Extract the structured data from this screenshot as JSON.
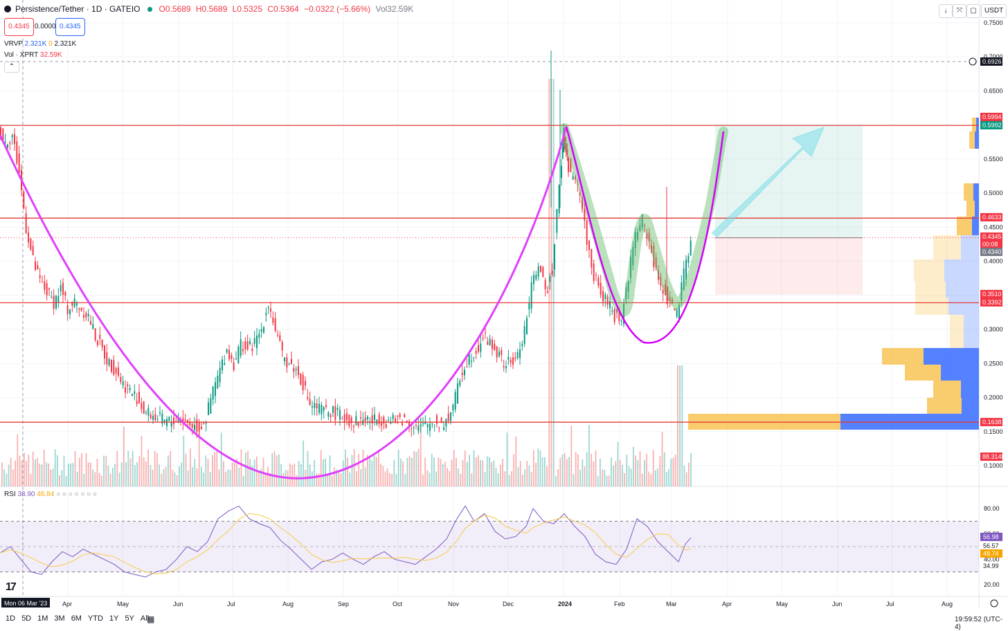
{
  "header": {
    "symbol": "Persistence/Tether · 1D · GATEIO",
    "o": "O0.5689",
    "h": "H0.5689",
    "l": "L0.5325",
    "c": "C0.5364",
    "change": "−0.0322 (−5.66%)",
    "vol": "Vol32.59K",
    "bid": "0.4345",
    "spread": "0.0000",
    "ask": "0.4345"
  },
  "indicators": {
    "vrvp_label": "VRVP",
    "vrvp_v1": "2.321K",
    "vrvp_v2": "0",
    "vrvp_v3": "2.321K",
    "vol_label": "Vol · XPRT",
    "vol_value": "32.59K",
    "rsi_label": "RSI",
    "rsi_value": "38.90",
    "rsi_ma": "46.84"
  },
  "toolbar": {
    "quote": "USDT"
  },
  "timeframes": [
    "1D",
    "5D",
    "1M",
    "3M",
    "6M",
    "YTD",
    "1Y",
    "5Y",
    "All"
  ],
  "clock": "19:59:52 (UTC-4)",
  "chart_data": {
    "type": "candlestick",
    "price_ticks": [
      "0.7500",
      "0.7000",
      "0.6500",
      "0.6000",
      "0.5500",
      "0.5000",
      "0.4500",
      "0.4000",
      "0.3500",
      "0.3000",
      "0.2500",
      "0.2000",
      "0.1500",
      "0.1000"
    ],
    "price_ylim": [
      0.075,
      0.755
    ],
    "x_labels": [
      "Mon 06 Mar '23",
      "Apr",
      "May",
      "Jun",
      "Jul",
      "Aug",
      "Sep",
      "Oct",
      "Nov",
      "Dec",
      "2024",
      "Feb",
      "Mar",
      "Apr",
      "May",
      "Jun",
      "Jul",
      "Aug"
    ],
    "price_labels": [
      {
        "text": "0.6926",
        "color": "#131722"
      },
      {
        "text": "0.5994",
        "color": "#f23645"
      },
      {
        "text": "0.5992",
        "color": "#089981"
      },
      {
        "text": "0.4633",
        "color": "#f23645"
      },
      {
        "text": "0.4345",
        "color": "#f23645"
      },
      {
        "text": "00:08",
        "color": "#f23645"
      },
      {
        "text": "0.4340",
        "color": "#787b86"
      },
      {
        "text": "0.3510",
        "color": "#f23645"
      },
      {
        "text": "0.3392",
        "color": "#f23645"
      },
      {
        "text": "0.1638",
        "color": "#f23645"
      },
      {
        "text": "88.314K",
        "color": "#f23645"
      }
    ],
    "horizontal_levels": [
      0.5994,
      0.4633,
      0.3392,
      0.1638
    ],
    "rsi": {
      "ticks": [
        "80.00",
        "60.00",
        "40.00",
        "20.00"
      ],
      "labels": [
        {
          "text": "56.98",
          "color": "#7e57c2"
        },
        {
          "text": "56.57",
          "color": "#131722"
        },
        {
          "text": "48.74",
          "color": "#f7a600"
        },
        {
          "text": "34.99",
          "color": "#131722"
        }
      ],
      "band": [
        30,
        70
      ]
    },
    "price_path": [
      [
        0,
        0.595
      ],
      [
        10,
        0.575
      ],
      [
        20,
        0.585
      ],
      [
        30,
        0.53
      ],
      [
        40,
        0.45
      ],
      [
        50,
        0.4
      ],
      [
        60,
        0.37
      ],
      [
        70,
        0.355
      ],
      [
        80,
        0.34
      ],
      [
        90,
        0.36
      ],
      [
        100,
        0.33
      ],
      [
        110,
        0.34
      ],
      [
        120,
        0.33
      ],
      [
        130,
        0.32
      ],
      [
        140,
        0.29
      ],
      [
        150,
        0.27
      ],
      [
        160,
        0.25
      ],
      [
        170,
        0.24
      ],
      [
        180,
        0.22
      ],
      [
        190,
        0.21
      ],
      [
        200,
        0.2
      ],
      [
        210,
        0.18
      ],
      [
        220,
        0.175
      ],
      [
        230,
        0.17
      ],
      [
        240,
        0.165
      ],
      [
        250,
        0.165
      ],
      [
        260,
        0.17
      ],
      [
        270,
        0.165
      ],
      [
        280,
        0.16
      ],
      [
        290,
        0.155
      ],
      [
        300,
        0.17
      ],
      [
        310,
        0.21
      ],
      [
        320,
        0.24
      ],
      [
        330,
        0.27
      ],
      [
        340,
        0.25
      ],
      [
        350,
        0.28
      ],
      [
        360,
        0.27
      ],
      [
        370,
        0.28
      ],
      [
        380,
        0.3
      ],
      [
        390,
        0.34
      ],
      [
        400,
        0.3
      ],
      [
        410,
        0.26
      ],
      [
        420,
        0.25
      ],
      [
        430,
        0.24
      ],
      [
        440,
        0.22
      ],
      [
        450,
        0.19
      ],
      [
        460,
        0.185
      ],
      [
        470,
        0.18
      ],
      [
        480,
        0.18
      ],
      [
        490,
        0.175
      ],
      [
        500,
        0.17
      ],
      [
        510,
        0.165
      ],
      [
        520,
        0.165
      ],
      [
        530,
        0.17
      ],
      [
        540,
        0.165
      ],
      [
        550,
        0.17
      ],
      [
        560,
        0.165
      ],
      [
        570,
        0.165
      ],
      [
        580,
        0.17
      ],
      [
        590,
        0.165
      ],
      [
        600,
        0.16
      ],
      [
        610,
        0.155
      ],
      [
        620,
        0.16
      ],
      [
        630,
        0.165
      ],
      [
        640,
        0.16
      ],
      [
        650,
        0.17
      ],
      [
        660,
        0.2
      ],
      [
        670,
        0.24
      ],
      [
        680,
        0.26
      ],
      [
        690,
        0.27
      ],
      [
        700,
        0.29
      ],
      [
        710,
        0.28
      ],
      [
        720,
        0.265
      ],
      [
        730,
        0.25
      ],
      [
        740,
        0.25
      ],
      [
        750,
        0.26
      ],
      [
        760,
        0.3
      ],
      [
        770,
        0.36
      ],
      [
        780,
        0.4
      ],
      [
        790,
        0.35
      ],
      [
        800,
        0.39
      ],
      [
        810,
        0.52
      ],
      [
        815,
        0.59
      ],
      [
        820,
        0.55
      ],
      [
        830,
        0.52
      ],
      [
        840,
        0.5
      ],
      [
        850,
        0.43
      ],
      [
        860,
        0.38
      ],
      [
        870,
        0.35
      ],
      [
        880,
        0.34
      ],
      [
        890,
        0.32
      ],
      [
        900,
        0.315
      ],
      [
        910,
        0.38
      ],
      [
        920,
        0.44
      ],
      [
        930,
        0.46
      ],
      [
        940,
        0.43
      ],
      [
        950,
        0.38
      ],
      [
        960,
        0.36
      ],
      [
        970,
        0.34
      ],
      [
        980,
        0.32
      ],
      [
        990,
        0.38
      ],
      [
        1000,
        0.4345
      ]
    ],
    "rsi_path": [
      [
        0,
        45
      ],
      [
        15,
        50
      ],
      [
        30,
        40
      ],
      [
        45,
        30
      ],
      [
        60,
        28
      ],
      [
        75,
        38
      ],
      [
        90,
        46
      ],
      [
        105,
        42
      ],
      [
        120,
        48
      ],
      [
        135,
        44
      ],
      [
        150,
        40
      ],
      [
        165,
        36
      ],
      [
        180,
        30
      ],
      [
        195,
        28
      ],
      [
        210,
        26
      ],
      [
        225,
        30
      ],
      [
        240,
        32
      ],
      [
        255,
        40
      ],
      [
        270,
        50
      ],
      [
        285,
        46
      ],
      [
        300,
        54
      ],
      [
        315,
        72
      ],
      [
        330,
        78
      ],
      [
        345,
        82
      ],
      [
        360,
        72
      ],
      [
        375,
        68
      ],
      [
        390,
        65
      ],
      [
        405,
        55
      ],
      [
        420,
        48
      ],
      [
        435,
        40
      ],
      [
        450,
        32
      ],
      [
        465,
        38
      ],
      [
        480,
        40
      ],
      [
        495,
        45
      ],
      [
        510,
        40
      ],
      [
        525,
        36
      ],
      [
        540,
        42
      ],
      [
        555,
        46
      ],
      [
        570,
        40
      ],
      [
        585,
        38
      ],
      [
        600,
        36
      ],
      [
        615,
        42
      ],
      [
        630,
        48
      ],
      [
        645,
        56
      ],
      [
        660,
        72
      ],
      [
        672,
        82
      ],
      [
        685,
        70
      ],
      [
        700,
        76
      ],
      [
        715,
        62
      ],
      [
        730,
        56
      ],
      [
        745,
        58
      ],
      [
        760,
        66
      ],
      [
        770,
        80
      ],
      [
        785,
        70
      ],
      [
        800,
        68
      ],
      [
        815,
        76
      ],
      [
        830,
        66
      ],
      [
        845,
        58
      ],
      [
        860,
        44
      ],
      [
        875,
        38
      ],
      [
        890,
        36
      ],
      [
        905,
        48
      ],
      [
        920,
        72
      ],
      [
        935,
        66
      ],
      [
        950,
        54
      ],
      [
        965,
        46
      ],
      [
        980,
        38
      ],
      [
        990,
        52
      ],
      [
        998,
        56.98
      ]
    ]
  }
}
